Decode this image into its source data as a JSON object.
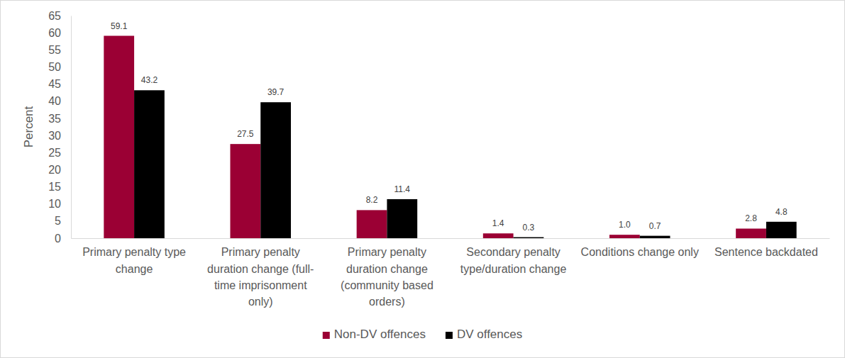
{
  "chart_data": {
    "type": "bar",
    "y_label": "Percent",
    "categories": [
      "Primary penalty type change",
      "Primary penalty duration change (full-time imprisonment only)",
      "Primary penalty duration change (community based orders)",
      "Secondary penalty type/duration change",
      "Conditions change only",
      "Sentence backdated"
    ],
    "series": [
      {
        "name": "Non-DV offences",
        "color": "#9b0034",
        "values": [
          59.1,
          27.5,
          8.2,
          1.4,
          1.0,
          2.8
        ],
        "value_labels": [
          "59.1",
          "27.5",
          "8.2",
          "1.4",
          "1.0",
          "2.8"
        ]
      },
      {
        "name": "DV offences",
        "color": "#000000",
        "values": [
          43.2,
          39.7,
          11.4,
          0.3,
          0.7,
          4.8
        ],
        "value_labels": [
          "43.2",
          "39.7",
          "11.4",
          "0.3",
          "0.7",
          "4.8"
        ]
      }
    ],
    "ylim": [
      0,
      65
    ],
    "yticks": [
      0,
      5,
      10,
      15,
      20,
      25,
      30,
      35,
      40,
      45,
      50,
      55,
      60,
      65
    ],
    "grid": false,
    "legend": "bottom",
    "data_labels": true
  }
}
